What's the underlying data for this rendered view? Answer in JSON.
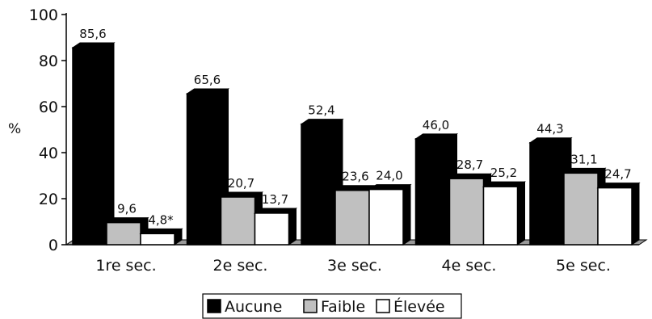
{
  "chart_data": {
    "type": "bar",
    "title": "",
    "xlabel": "",
    "ylabel": "%",
    "ylim": [
      0,
      100
    ],
    "yticks": [
      "0",
      "20",
      "40",
      "60",
      "80",
      "100"
    ],
    "categories": [
      "1re sec.",
      "2e sec.",
      "3e sec.",
      "4e sec.",
      "5e sec."
    ],
    "series": [
      {
        "name": "Aucune",
        "values": [
          85.6,
          65.6,
          52.4,
          46.0,
          44.3
        ],
        "labels": [
          "85,6",
          "65,6",
          "52,4",
          "46,0",
          "44,3"
        ],
        "color": "#000000"
      },
      {
        "name": "Faible",
        "values": [
          9.6,
          20.7,
          23.6,
          28.7,
          31.1
        ],
        "labels": [
          "9,6",
          "20,7",
          "23,6",
          "28,7",
          "31,1"
        ],
        "color": "#c0c0c0"
      },
      {
        "name": "Élevée",
        "values": [
          4.8,
          13.7,
          24.0,
          25.2,
          24.7
        ],
        "labels": [
          "4,8*",
          "13,7",
          "24,0",
          "25,2",
          "24,7"
        ],
        "color": "#ffffff"
      }
    ],
    "grid": false,
    "legend_position": "bottom",
    "style": "3d-bars"
  }
}
